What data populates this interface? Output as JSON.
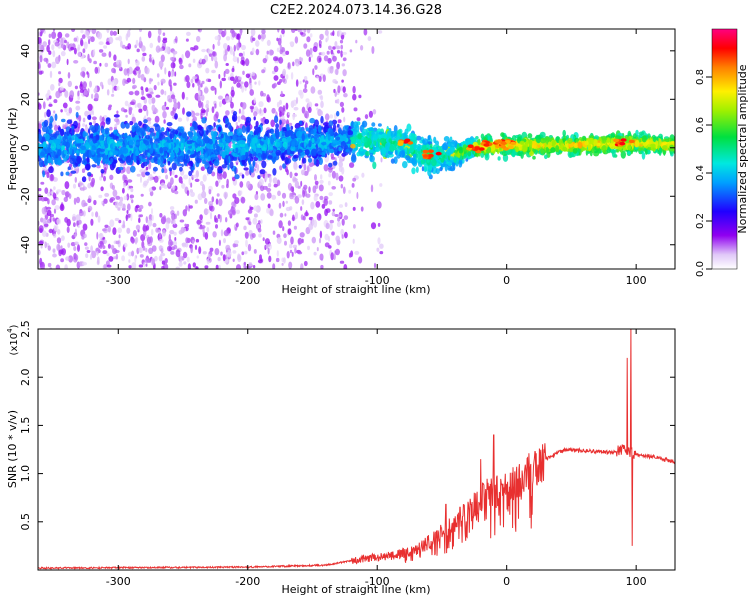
{
  "figure_title": "C2E2.2024.073.14.36.G28",
  "colors": {
    "snr_line": "#e83030",
    "axes": "#000000",
    "background": "#ffffff"
  },
  "chart_data": [
    {
      "type": "heatmap",
      "xlabel": "Height of straight line (km)",
      "ylabel": "Frequency (Hz)",
      "xlim": [
        -362,
        130
      ],
      "ylim": [
        -50,
        49
      ],
      "x_ticks": [
        -300,
        -200,
        -100,
        0,
        100
      ],
      "y_ticks": [
        -40,
        -20,
        0,
        20,
        40
      ],
      "colorbar": {
        "label": "Normalized spectral amplitude",
        "range": [
          0,
          1
        ],
        "ticks": [
          0.0,
          0.2,
          0.4,
          0.6,
          0.8
        ],
        "tick_labels": [
          "0.0",
          "0.2",
          "0.4",
          "0.6",
          "0.8"
        ],
        "colormap": "rainbow (white-violet-blue-cyan-green-yellow-red-magenta)"
      },
      "description_values": {
        "band_center_hz": [
          {
            "x": -362,
            "f": 0
          },
          {
            "x": -200,
            "f": 1
          },
          {
            "x": -120,
            "f": 3
          },
          {
            "x": -80,
            "f": 2
          },
          {
            "x": -60,
            "f": -4
          },
          {
            "x": -40,
            "f": -3
          },
          {
            "x": -25,
            "f": 0
          },
          {
            "x": 0,
            "f": 1
          },
          {
            "x": 50,
            "f": 1
          },
          {
            "x": 90,
            "f": 2
          },
          {
            "x": 130,
            "f": 1
          }
        ],
        "band_halfwidth_hz": [
          {
            "x": -362,
            "w": 8
          },
          {
            "x": -200,
            "w": 8
          },
          {
            "x": -120,
            "w": 6
          },
          {
            "x": -60,
            "w": 6
          },
          {
            "x": -25,
            "w": 3
          },
          {
            "x": 130,
            "w": 3
          }
        ],
        "scatter_extent_x_km": [
          -362,
          -125
        ]
      }
    },
    {
      "type": "line",
      "xlabel": "Height of straight line (km)",
      "ylabel": "SNR (10 * v/v)",
      "y_multiplier_label": "(x10",
      "y_multiplier_exp": "4",
      "y_multiplier_close": ")",
      "xlim": [
        -362,
        130
      ],
      "ylim": [
        0,
        2.5
      ],
      "x_ticks": [
        -300,
        -200,
        -100,
        0,
        100
      ],
      "y_ticks": [
        0.5,
        1.0,
        1.5,
        2.0,
        2.5
      ],
      "y_tick_labels": [
        "0.5",
        "1.0",
        "1.5",
        "2.0",
        "2.5"
      ],
      "series": [
        {
          "values_envelope": [
            {
              "x": -362,
              "y": 0.02
            },
            {
              "x": -200,
              "y": 0.03
            },
            {
              "x": -140,
              "y": 0.05
            },
            {
              "x": -110,
              "y": 0.12
            },
            {
              "x": -90,
              "y": 0.15
            },
            {
              "x": -70,
              "y": 0.2
            },
            {
              "x": -50,
              "y": 0.4
            },
            {
              "x": -40,
              "y": 0.5
            },
            {
              "x": -30,
              "y": 0.6
            },
            {
              "x": -15,
              "y": 0.8
            },
            {
              "x": 0,
              "y": 0.85
            },
            {
              "x": 15,
              "y": 1.0
            },
            {
              "x": 30,
              "y": 1.15
            },
            {
              "x": 45,
              "y": 1.25
            },
            {
              "x": 60,
              "y": 1.24
            },
            {
              "x": 80,
              "y": 1.22
            },
            {
              "x": 88,
              "y": 1.25
            },
            {
              "x": 100,
              "y": 1.2
            },
            {
              "x": 115,
              "y": 1.17
            },
            {
              "x": 130,
              "y": 1.12
            }
          ],
          "spikes": [
            {
              "x": -47,
              "y": 0.68
            },
            {
              "x": -36,
              "y": 0.65
            },
            {
              "x": -20,
              "y": 1.15
            },
            {
              "x": -10,
              "y": 1.4
            },
            {
              "x": 93,
              "y": 2.2
            },
            {
              "x": 96,
              "y": 2.55
            },
            {
              "x": 97,
              "y": 0.25
            }
          ]
        }
      ]
    }
  ]
}
